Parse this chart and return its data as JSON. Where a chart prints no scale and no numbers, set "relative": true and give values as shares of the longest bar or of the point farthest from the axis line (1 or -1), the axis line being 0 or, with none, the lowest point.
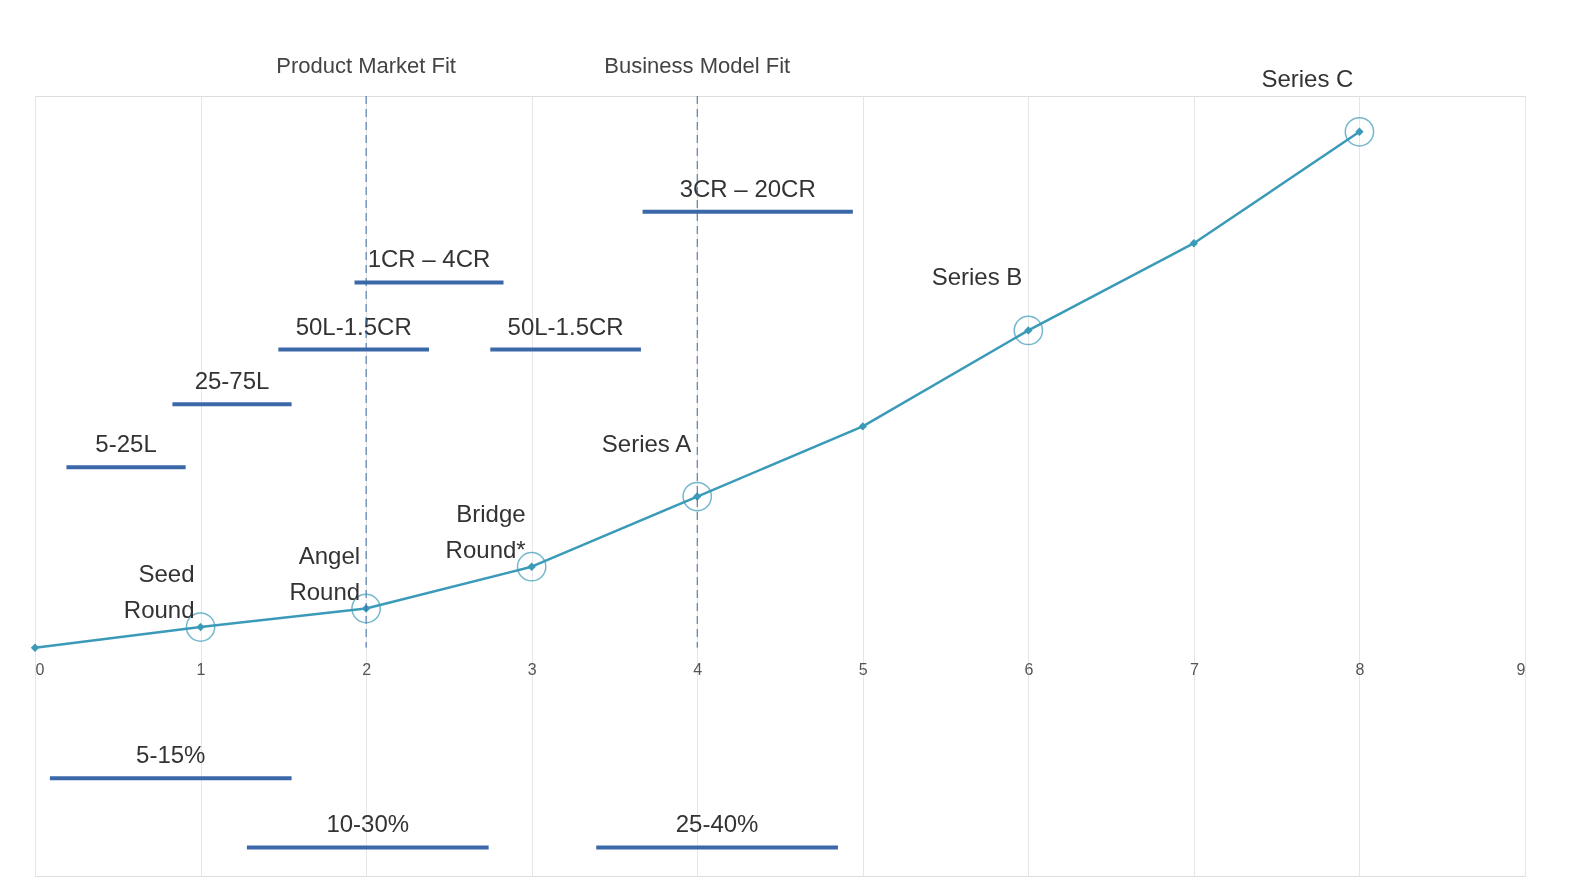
{
  "chart_data": {
    "type": "line",
    "relative": true,
    "xlim": [
      0,
      9
    ],
    "xticks": [
      0,
      1,
      2,
      3,
      4,
      5,
      6,
      7,
      8,
      9
    ],
    "grid": "x",
    "legend": false,
    "series": [
      {
        "color": "#3a9ab8",
        "marker": "diamond",
        "x": [
          0,
          1,
          2,
          3,
          4,
          5,
          6,
          7,
          8
        ],
        "values": [
          0,
          0.04,
          0.076,
          0.157,
          0.293,
          0.429,
          0.615,
          0.784,
          1
        ]
      },
      {
        "type": "line",
        "name": "5-25L",
        "color": "#3b68a8",
        "marker": "none",
        "x": [
          0.19,
          0.91
        ],
        "values": [
          0.35,
          0.35
        ]
      },
      {
        "type": "line",
        "name": "25-75L",
        "color": "#3b68a8",
        "marker": "none",
        "x": [
          0.83,
          1.55
        ],
        "values": [
          0.472,
          0.472
        ]
      },
      {
        "type": "line",
        "name": "50L-1.5CR",
        "color": "#3b68a8",
        "marker": "none",
        "x": [
          1.47,
          2.38
        ],
        "values": [
          0.578,
          0.578
        ]
      },
      {
        "type": "line",
        "name": "1CR – 4CR",
        "color": "#3b68a8",
        "marker": "none",
        "x": [
          1.93,
          2.83
        ],
        "values": [
          0.708,
          0.708
        ]
      },
      {
        "type": "line",
        "name": "50L-1.5CR",
        "color": "#3b68a8",
        "marker": "none",
        "x": [
          2.75,
          3.66
        ],
        "values": [
          0.578,
          0.578
        ]
      },
      {
        "type": "line",
        "name": "3CR – 20CR",
        "color": "#3b68a8",
        "marker": "none",
        "x": [
          3.67,
          4.94
        ],
        "values": [
          0.845,
          0.845
        ]
      },
      {
        "type": "line",
        "name": "5-15%",
        "color": "#3b68a8",
        "marker": "none",
        "x": [
          0.09,
          1.55
        ],
        "values": [
          -0.253,
          -0.253
        ]
      },
      {
        "type": "line",
        "name": "10-30%",
        "color": "#3b68a8",
        "marker": "none",
        "x": [
          1.28,
          2.74
        ],
        "values": [
          -0.387,
          -0.387
        ]
      },
      {
        "type": "line",
        "name": "25-40%",
        "color": "#3b68a8",
        "marker": "none",
        "x": [
          3.39,
          4.85
        ],
        "values": [
          -0.387,
          -0.387
        ]
      }
    ],
    "ref_lines": [
      {
        "axis": "x",
        "value": 2,
        "label": "Product Market Fit",
        "color": "#3b68a8",
        "line_style": "dashed"
      },
      {
        "axis": "x",
        "value": 4,
        "label": "Business Model Fit",
        "color": "#3b68a8",
        "line_style": "dashed"
      }
    ],
    "annotations": [
      {
        "text": "Seed\nRound",
        "x": 1,
        "y": 0.04
      },
      {
        "text": "Angel\nRound",
        "x": 2,
        "y": 0.076
      },
      {
        "text": "Bridge\nRound*",
        "x": 3,
        "y": 0.157
      },
      {
        "text": "Series A",
        "x": 4,
        "y": 0.293
      },
      {
        "text": "Series B",
        "x": 6,
        "y": 0.615
      },
      {
        "text": "Series C",
        "x": 8,
        "y": 1
      }
    ]
  }
}
